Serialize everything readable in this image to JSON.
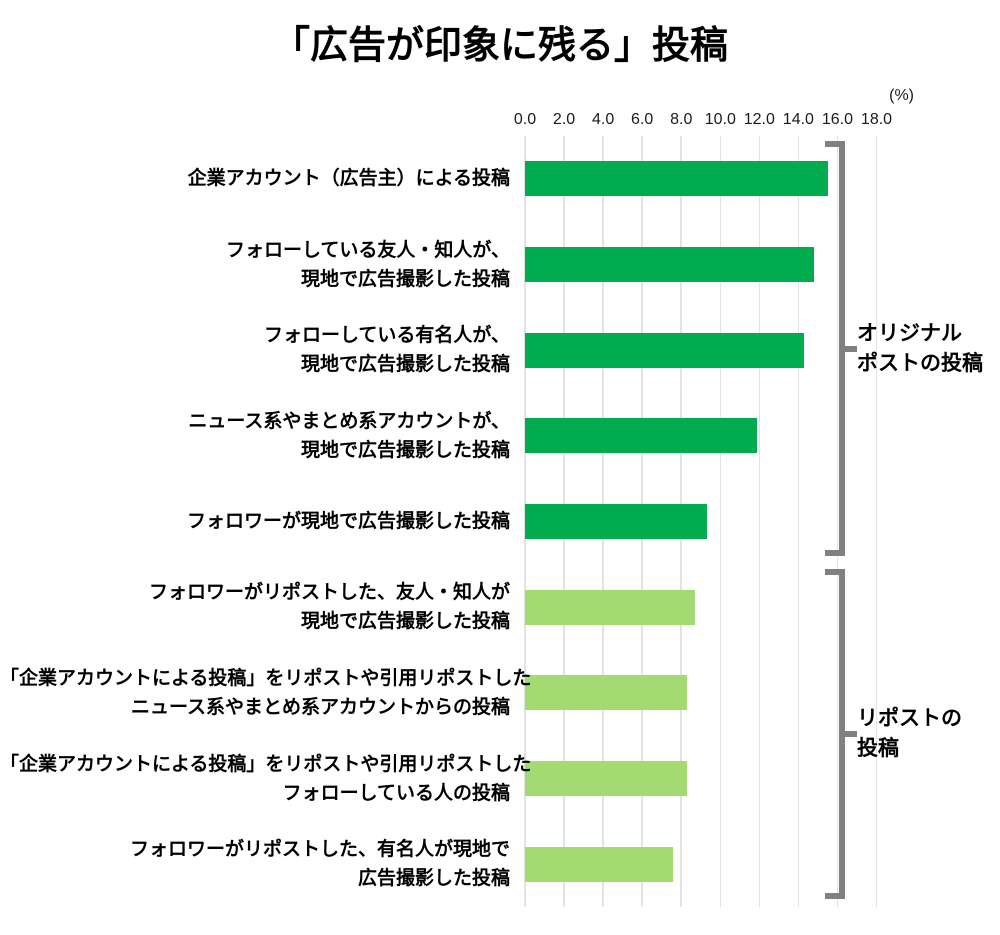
{
  "title": "「広告が印象に残る」投稿",
  "axis": {
    "unit_label": "(%)",
    "tick_labels": [
      "0.0",
      "2.0",
      "4.0",
      "6.0",
      "8.0",
      "10.0",
      "12.0",
      "14.0",
      "16.0",
      "18.0"
    ]
  },
  "colors": {
    "original_post_bar": "#00AC4E",
    "repost_bar": "#A3DB72",
    "gridline": "#E3E3E3",
    "bracket": "#808080",
    "text": "#000000"
  },
  "chart_data": {
    "type": "bar",
    "orientation": "horizontal",
    "title": "「広告が印象に残る」投稿",
    "xlabel": "(%)",
    "xlim": [
      0,
      18
    ],
    "tick_step": 2,
    "grid": true,
    "categories": [
      "企業アカウント（広告主）による投稿",
      "フォローしている友人・知人が、現地で広告撮影した投稿",
      "フォローしている有名人が、現地で広告撮影した投稿",
      "ニュース系やまとめ系アカウントが、現地で広告撮影した投稿",
      "フォロワーが現地で広告撮影した投稿",
      "フォロワーがリポストした、友人・知人が現地で広告撮影した投稿",
      "「企業アカウントによる投稿」をリポストや引用リポストしたニュース系やまとめ系アカウントからの投稿",
      "「企業アカウントによる投稿」をリポストや引用リポストしたフォローしている人の投稿",
      "フォロワーがリポストした、有名人が現地で広告撮影した投稿"
    ],
    "category_lines": [
      [
        "企業アカウント（広告主）による投稿"
      ],
      [
        "フォローしている友人・知人が、",
        "現地で広告撮影した投稿"
      ],
      [
        "フォローしている有名人が、",
        "現地で広告撮影した投稿"
      ],
      [
        "ニュース系やまとめ系アカウントが、",
        "現地で広告撮影した投稿"
      ],
      [
        "フォロワーが現地で広告撮影した投稿"
      ],
      [
        "フォロワーがリポストした、友人・知人が",
        "現地で広告撮影した投稿"
      ],
      [
        "「企業アカウントによる投稿」をリポストや引用リポストした",
        "ニュース系やまとめ系アカウントからの投稿"
      ],
      [
        "「企業アカウントによる投稿」をリポストや引用リポストした",
        "フォローしている人の投稿"
      ],
      [
        "フォロワーがリポストした、有名人が現地で",
        "広告撮影した投稿"
      ]
    ],
    "values": [
      15.5,
      14.8,
      14.3,
      11.9,
      9.3,
      8.7,
      8.3,
      8.3,
      7.6
    ],
    "groups": [
      {
        "label": "オリジナルポストの投稿",
        "label_lines": [
          "オリジナル",
          "ポストの投稿"
        ],
        "start_index": 0,
        "end_index": 4,
        "bar_color": "#00AC4E"
      },
      {
        "label": "リポストの投稿",
        "label_lines": [
          "リポストの",
          "投稿"
        ],
        "start_index": 5,
        "end_index": 8,
        "bar_color": "#A3DB72"
      }
    ]
  }
}
